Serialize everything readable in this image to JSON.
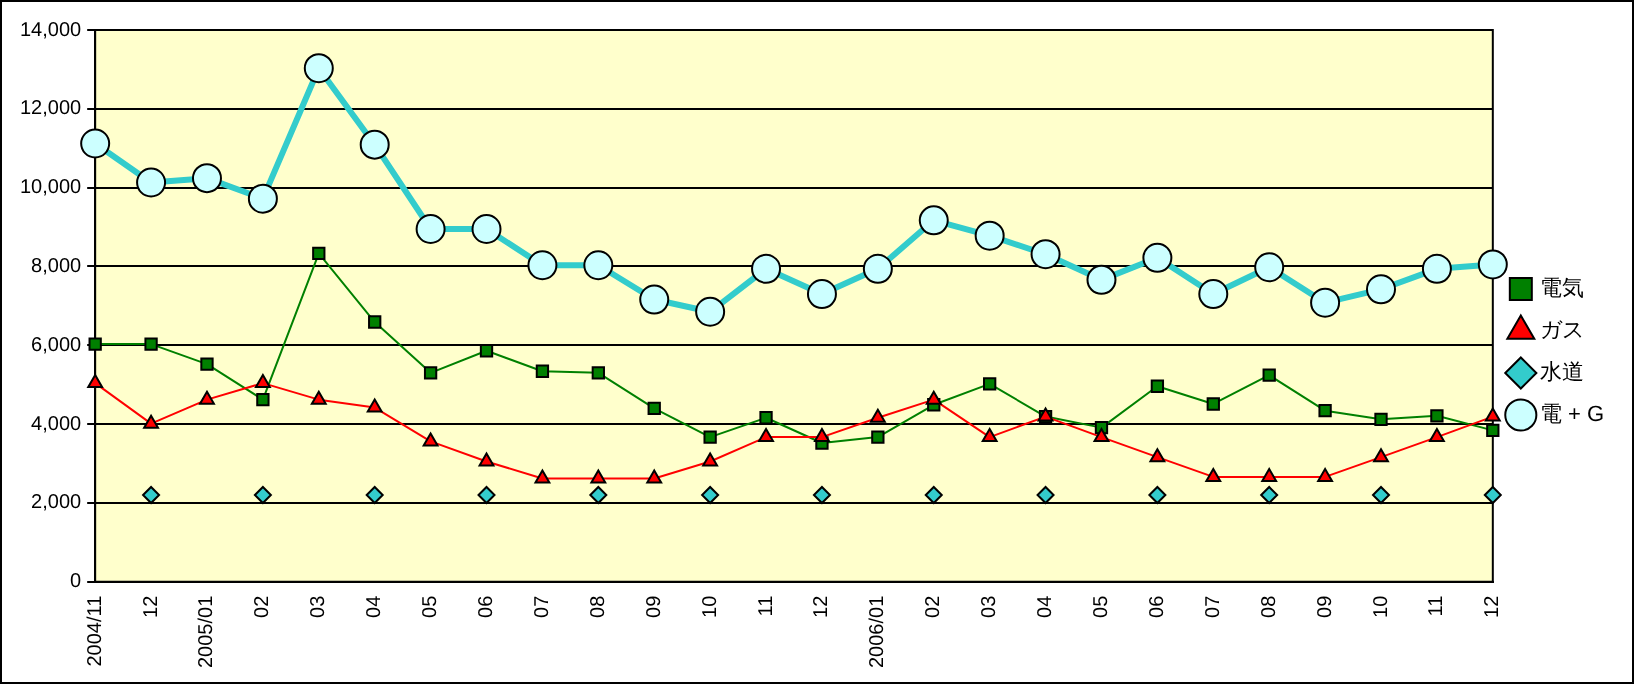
{
  "chart_data": {
    "type": "line",
    "categories": [
      "2004/11",
      "12",
      "2005/01",
      "02",
      "03",
      "04",
      "05",
      "06",
      "07",
      "08",
      "09",
      "10",
      "11",
      "12",
      "2006/01",
      "02",
      "03",
      "04",
      "05",
      "06",
      "07",
      "08",
      "09",
      "10",
      "11",
      "12"
    ],
    "series": [
      {
        "name": "電気",
        "color": "#008000",
        "marker": "square",
        "values": [
          6030,
          6030,
          5520,
          4620,
          8330,
          6590,
          5300,
          5860,
          5340,
          5300,
          4400,
          3670,
          4160,
          3520,
          3670,
          4490,
          5020,
          4190,
          3910,
          4960,
          4510,
          5240,
          4340,
          4120,
          4210,
          3840
        ]
      },
      {
        "name": "ガス",
        "color": "#ff0000",
        "marker": "triangle",
        "values": [
          5040,
          4010,
          4620,
          5040,
          4620,
          4420,
          3560,
          3050,
          2620,
          2620,
          2620,
          3050,
          3670,
          3670,
          4160,
          4620,
          3670,
          4190,
          3670,
          3160,
          2660,
          2660,
          2660,
          3160,
          3670,
          4190
        ]
      },
      {
        "name": "水道",
        "type": "scatter",
        "color": "#33cccc",
        "marker": "diamond",
        "values": [
          null,
          2200,
          null,
          2200,
          null,
          2200,
          null,
          2200,
          null,
          2200,
          null,
          2200,
          null,
          2200,
          null,
          2200,
          null,
          2200,
          null,
          2200,
          null,
          2200,
          null,
          2200,
          null,
          2200
        ]
      },
      {
        "name": "電 + G",
        "color": "#33cccc",
        "marker": "circle",
        "values": [
          11120,
          10130,
          10240,
          9720,
          13030,
          11090,
          8950,
          8950,
          8030,
          8030,
          7160,
          6850,
          7940,
          7300,
          7940,
          9170,
          8780,
          8310,
          7660,
          8220,
          7300,
          7980,
          7080,
          7420,
          7940,
          8050
        ]
      }
    ],
    "ylim": [
      0,
      14000
    ],
    "yticks": [
      0,
      {
        "value": 2000,
        "label": "2,000"
      },
      {
        "value": 4000,
        "label": "4,000"
      },
      {
        "value": 6000,
        "label": "6,000"
      },
      {
        "value": 8000,
        "label": "8,000"
      },
      {
        "value": 10000,
        "label": "10,000"
      },
      {
        "value": 12000,
        "label": "12,000"
      },
      {
        "value": 14000,
        "label": "14,000"
      }
    ],
    "grid": "y",
    "legend": "right"
  }
}
